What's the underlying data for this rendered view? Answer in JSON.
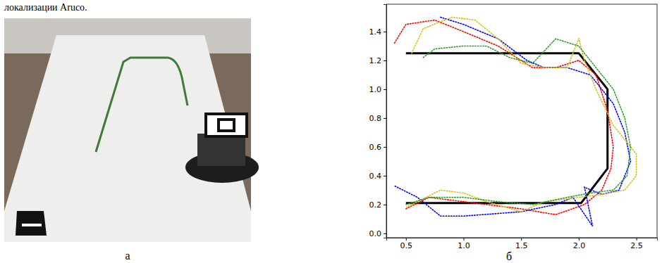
{
  "caption_fragment": "локализации Aruco.",
  "panel_labels": [
    "а",
    "б"
  ],
  "chart_data": {
    "type": "line",
    "xlim": [
      0.33,
      2.68
    ],
    "ylim": [
      -0.03,
      1.59
    ],
    "xticks": [
      0.5,
      {
        "value": 1,
        "label": "1.0"
      },
      1.5,
      {
        "value": 2,
        "label": "2.0"
      },
      2.5
    ],
    "yticks": [
      {
        "value": 0,
        "label": "0.0"
      },
      0.2,
      0.4,
      0.6,
      0.8,
      {
        "value": 1,
        "label": "1.0"
      },
      1.2,
      1.4
    ],
    "grid": false,
    "series": [
      {
        "color": "#000000",
        "line_style": "solid",
        "x": [
          0.5,
          2.0,
          2.25,
          2.25,
          2.02,
          0.5
        ],
        "values": [
          1.25,
          1.25,
          1.0,
          0.45,
          0.21,
          0.21
        ]
      },
      {
        "color": "#ff0000",
        "line_style": "dotted",
        "x": [
          0.4,
          0.5,
          0.75,
          1.0,
          1.3,
          1.6,
          1.8,
          2.0,
          2.15,
          2.25,
          2.3,
          2.28,
          2.2,
          2.05,
          1.8,
          1.5,
          1.0,
          0.7,
          0.5
        ],
        "values": [
          1.32,
          1.45,
          1.48,
          1.4,
          1.3,
          1.15,
          1.15,
          1.2,
          1.1,
          0.85,
          0.6,
          0.45,
          0.3,
          0.2,
          0.13,
          0.17,
          0.22,
          0.25,
          0.17
        ]
      },
      {
        "color": "#0000ff",
        "line_style": "dotted",
        "x": [
          0.8,
          1.0,
          1.3,
          1.55,
          1.7,
          1.9,
          2.1,
          2.3,
          2.4,
          2.45,
          2.35,
          2.2,
          2.05,
          2.12,
          1.95,
          1.8,
          1.5,
          1.0,
          0.8,
          0.6,
          0.4
        ],
        "values": [
          1.5,
          1.45,
          1.35,
          1.2,
          1.15,
          1.15,
          1.1,
          0.9,
          0.7,
          0.5,
          0.3,
          0.27,
          0.32,
          0.05,
          0.25,
          0.2,
          0.15,
          0.12,
          0.12,
          0.25,
          0.33
        ]
      },
      {
        "color": "#d4c21a",
        "line_style": "dotted",
        "x": [
          0.55,
          0.65,
          0.9,
          1.1,
          1.3,
          1.5,
          1.7,
          1.9,
          2.0,
          2.05,
          2.15,
          2.3,
          2.5,
          2.5,
          2.4,
          2.2,
          2.0,
          1.7,
          1.5,
          1.2,
          1.0,
          0.8,
          0.5
        ],
        "values": [
          1.25,
          1.42,
          1.5,
          1.48,
          1.35,
          1.18,
          1.15,
          1.15,
          1.35,
          1.2,
          1.0,
          0.75,
          0.55,
          0.4,
          0.3,
          0.27,
          0.25,
          0.22,
          0.15,
          0.22,
          0.28,
          0.3,
          0.18
        ]
      },
      {
        "color": "#2ca02c",
        "line_style": "dotted",
        "x": [
          0.65,
          0.75,
          1.0,
          1.2,
          1.4,
          1.6,
          1.8,
          2.0,
          2.1,
          2.3,
          2.4,
          2.45,
          2.42,
          2.3,
          2.1,
          1.9,
          1.6,
          1.3,
          1.0,
          0.7,
          0.5
        ],
        "values": [
          1.22,
          1.28,
          1.3,
          1.3,
          1.22,
          1.18,
          1.35,
          1.3,
          1.2,
          1.0,
          0.8,
          0.6,
          0.4,
          0.3,
          0.28,
          0.25,
          0.2,
          0.22,
          0.25,
          0.25,
          0.2
        ]
      }
    ]
  }
}
